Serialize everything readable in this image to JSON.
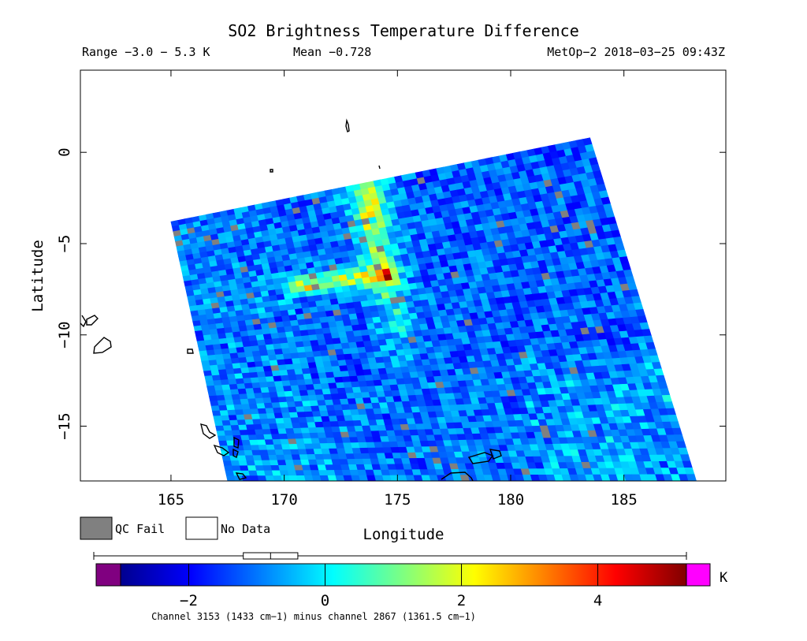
{
  "chart_data": {
    "type": "heatmap",
    "title": "SO2 Brightness Temperature Difference",
    "header": {
      "range": "Range −3.0 − 5.3 K",
      "mean": "Mean −0.728",
      "instrument_time": "MetOp−2 2018−03−25 09:43Z"
    },
    "xlabel": "Longitude",
    "ylabel": "Latitude",
    "xlim": [
      161,
      189.5
    ],
    "ylim": [
      -18,
      4.5
    ],
    "x_ticks": [
      165,
      170,
      175,
      180,
      185
    ],
    "y_ticks": [
      0,
      -5,
      -10,
      -15
    ],
    "x_tick_labels": [
      "165",
      "170",
      "175",
      "180",
      "185"
    ],
    "y_tick_labels": [
      "0",
      "−5",
      "−10",
      "−15"
    ],
    "swath_corners": [
      [
        165,
        -3.8
      ],
      [
        183.5,
        0.8
      ],
      [
        188.2,
        -18
      ],
      [
        167.5,
        -18
      ]
    ],
    "plume": {
      "vertical_segment": {
        "lon_start": 173.5,
        "lat_start": -1.6,
        "lon_end": 175.2,
        "lat_end": -10.5,
        "peak_k": 4.8
      },
      "horizontal_segment": {
        "lon_start": 170.5,
        "lat_start": -7.3,
        "lon_end": 174.5,
        "lat_end": -6.7,
        "peak_k": 4.0
      }
    },
    "background_k": -1.2,
    "legend": [
      {
        "label": "QC Fail",
        "color": "#808080"
      },
      {
        "label": "No Data",
        "color": "#ffffff"
      }
    ],
    "colorbar": {
      "range": [
        -3.0,
        5.3
      ],
      "ticks": [
        -2,
        0,
        2,
        4
      ],
      "tick_labels": [
        "−2",
        "0",
        "2",
        "4"
      ],
      "unit": "K",
      "under_color": "#800080",
      "over_color": "#ff00ff",
      "box_range": [
        -1.2,
        -0.4
      ],
      "box_median": -0.8,
      "whisker_range": [
        -3.0,
        5.3
      ]
    },
    "caption": "Channel 3153 (1433 cm−1) minus channel 2867 (1361.5 cm−1)"
  }
}
